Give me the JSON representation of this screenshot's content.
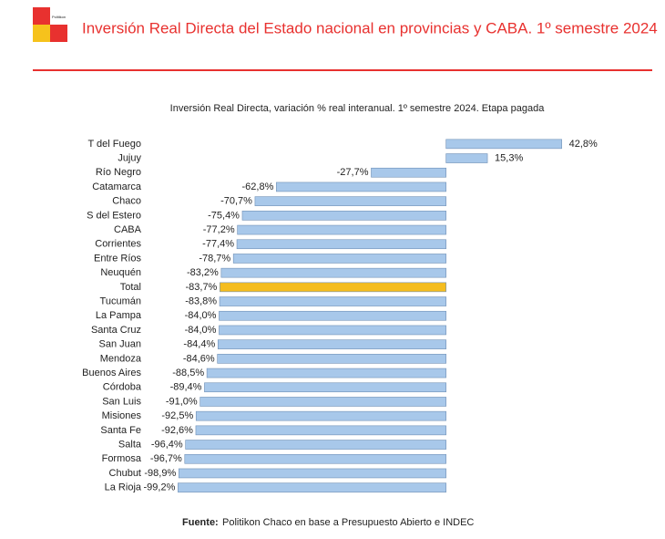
{
  "header": {
    "logo_text": "Politikon",
    "title": "Inversión Real Directa del Estado nacional en provincias y CABA. 1º semestre 2024"
  },
  "chart_data": {
    "type": "hbar",
    "title": "Inversión Real Directa, variación % real interanual. 1º semestre 2024. Etapa pagada",
    "categories": [
      "T del Fuego",
      "Jujuy",
      "Río Negro",
      "Catamarca",
      "Chaco",
      "S del Estero",
      "CABA",
      "Corrientes",
      "Entre Ríos",
      "Neuquén",
      "Total",
      "Tucumán",
      "La Pampa",
      "Santa Cruz",
      "San Juan",
      "Mendoza",
      "Buenos Aires",
      "Córdoba",
      "San Luis",
      "Misiones",
      "Santa Fe",
      "Salta",
      "Formosa",
      "Chubut",
      "La Rioja"
    ],
    "values": [
      42.8,
      15.3,
      -27.7,
      -62.8,
      -70.7,
      -75.4,
      -77.2,
      -77.4,
      -78.7,
      -83.2,
      -83.7,
      -83.8,
      -84.0,
      -84.0,
      -84.4,
      -84.6,
      -88.5,
      -89.4,
      -91.0,
      -92.5,
      -92.6,
      -96.4,
      -96.7,
      -98.9,
      -99.2
    ],
    "value_labels": [
      "42,8%",
      "15,3%",
      "-27,7%",
      "-62,8%",
      "-70,7%",
      "-75,4%",
      "-77,2%",
      "-77,4%",
      "-78,7%",
      "-83,2%",
      "-83,7%",
      "-83,8%",
      "-84,0%",
      "-84,0%",
      "-84,4%",
      "-84,6%",
      "-88,5%",
      "-89,4%",
      "-91,0%",
      "-92,5%",
      "-92,6%",
      "-96,4%",
      "-96,7%",
      "-98,9%",
      "-99,2%"
    ],
    "colors": [
      "#a8c8ea",
      "#a8c8ea",
      "#a8c8ea",
      "#a8c8ea",
      "#a8c8ea",
      "#a8c8ea",
      "#a8c8ea",
      "#a8c8ea",
      "#a8c8ea",
      "#a8c8ea",
      "#f5bd1f",
      "#a8c8ea",
      "#a8c8ea",
      "#a8c8ea",
      "#a8c8ea",
      "#a8c8ea",
      "#a8c8ea",
      "#a8c8ea",
      "#a8c8ea",
      "#a8c8ea",
      "#a8c8ea",
      "#a8c8ea",
      "#a8c8ea",
      "#a8c8ea",
      "#a8c8ea"
    ],
    "xlim": [
      -100,
      50
    ],
    "source_label": "Fuente:",
    "source_text": "Politikon Chaco en base a Presupuesto Abierto e INDEC"
  }
}
